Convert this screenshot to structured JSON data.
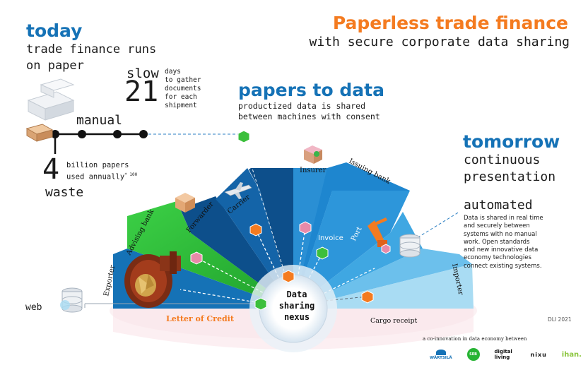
{
  "header": {
    "title": "Paperless trade finance",
    "subtitle": "with secure corporate data sharing"
  },
  "today": {
    "heading": "today",
    "line1": "trade finance runs",
    "line2": "on paper",
    "slow_label": "slow",
    "days_number": "21",
    "days_text": [
      "days",
      "to gather",
      "documents",
      "for each",
      "shipment"
    ],
    "manual_label": "manual",
    "papers_number": "4",
    "papers_text_1": "billion papers",
    "papers_text_2": "used annually",
    "papers_note": "* 100",
    "waste_label": "waste"
  },
  "papers_to_data": {
    "heading": "papers to data",
    "line1": "productized data is shared",
    "line2": "between machines with consent"
  },
  "tomorrow": {
    "heading": "tomorrow",
    "line1": "continuous",
    "line2": "presentation",
    "automated_label": "automated",
    "body": [
      "Data is shared in real time",
      "and securely between",
      "systems with no manual",
      "work. Open standards",
      "and new innovative data",
      "economy technologies",
      "connect existing systems."
    ]
  },
  "diagram": {
    "hub": [
      "Data",
      "sharing",
      "nexus"
    ],
    "parties": [
      "Exporter",
      "Advising bank",
      "Forwarder",
      "Carrier",
      "Insurer",
      "Issuing bank",
      "Port",
      "Importer"
    ],
    "documents": {
      "letter_of_credit": "Letter of Credit",
      "invoice": "Invoice",
      "cargo_receipt": "Cargo receipt"
    },
    "web_label": "web",
    "colors": {
      "dark_blue": "#0d4f8b",
      "mid_blue": "#1572b6",
      "light_blue": "#3aa0de",
      "pale_blue": "#a9dcf3",
      "green": "#27b434",
      "orange": "#f47b20",
      "pink": "#e88aa9"
    }
  },
  "footer": {
    "credit": "DLI 2021",
    "coinnovation": "a co-innovation in data economy between",
    "partners": [
      "WÄRTSILÄ",
      "SEB",
      "digital living",
      "nixu",
      "ihan."
    ]
  }
}
